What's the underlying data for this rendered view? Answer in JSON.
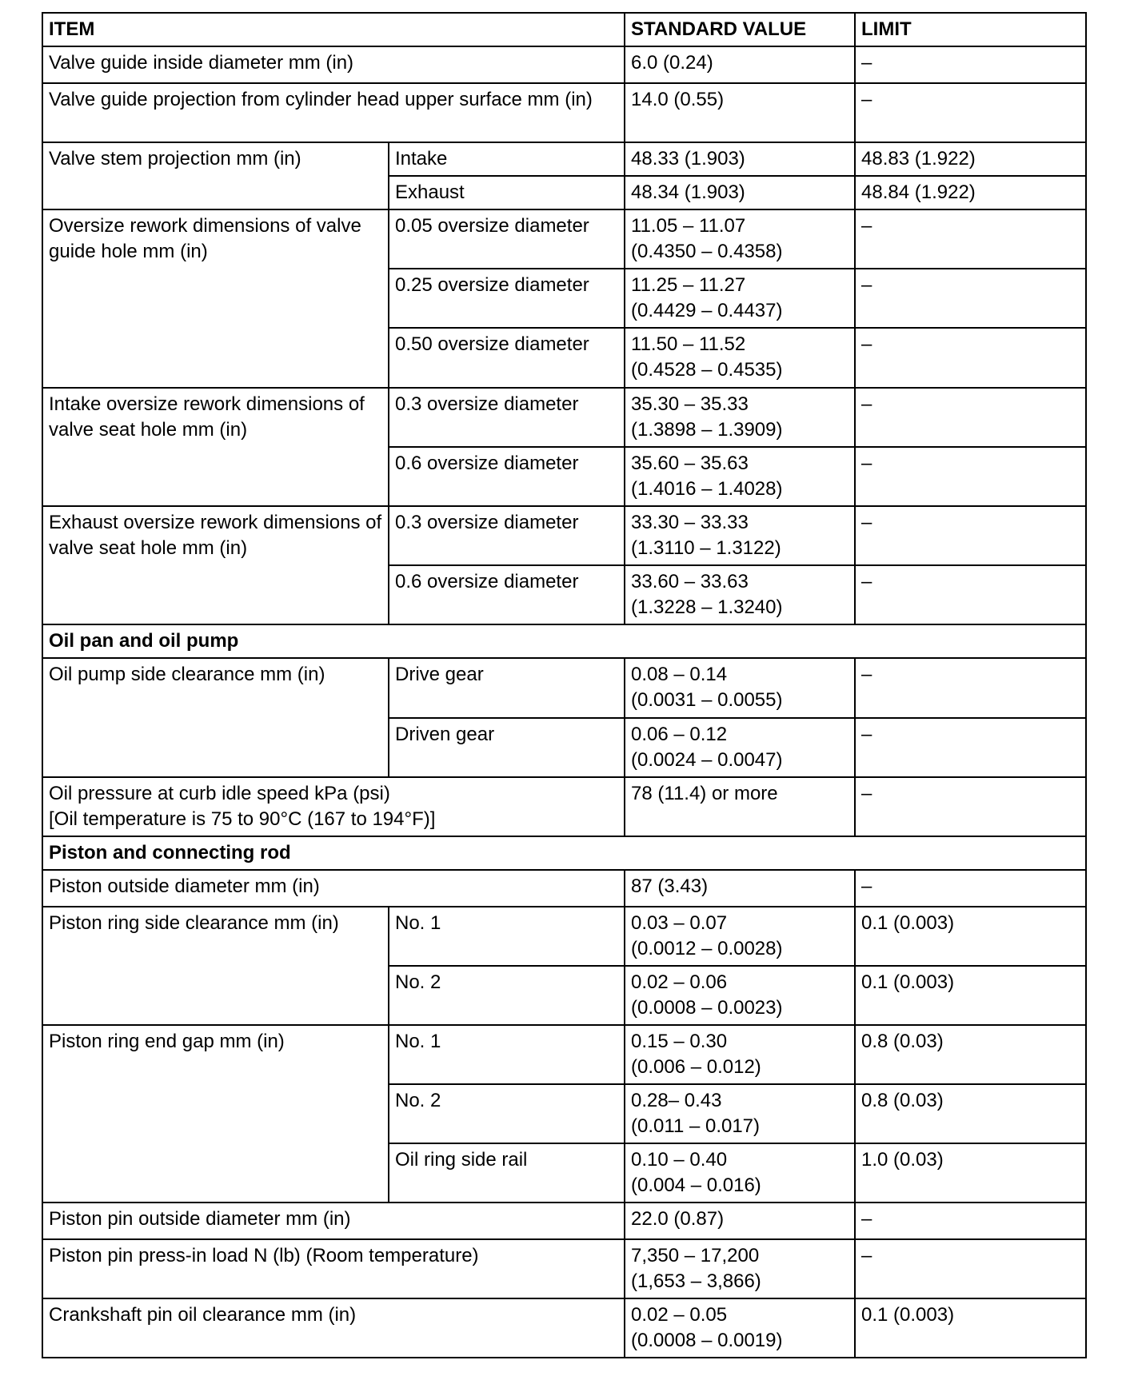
{
  "table": {
    "header": {
      "item": "ITEM",
      "standard_value": "STANDARD VALUE",
      "limit": "LIMIT"
    },
    "rows": [
      {
        "cells": [
          {
            "text": "Valve guide inside diameter mm (in)",
            "colspan": 2
          },
          {
            "text": "6.0 (0.24)"
          },
          {
            "text": "–"
          }
        ]
      },
      {
        "cells": [
          {
            "text": "Valve guide projection from cylinder head upper surface mm (in)",
            "colspan": 2
          },
          {
            "text": "14.0 (0.55)"
          },
          {
            "text": "–"
          }
        ]
      },
      {
        "cells": [
          {
            "text": "Valve stem projection mm (in)",
            "rowspan": 2
          },
          {
            "text": "Intake"
          },
          {
            "text": "48.33 (1.903)"
          },
          {
            "text": "48.83 (1.922)"
          }
        ]
      },
      {
        "cells": [
          {
            "text": "Exhaust"
          },
          {
            "text": "48.34 (1.903)"
          },
          {
            "text": "48.84 (1.922)"
          }
        ]
      },
      {
        "cells": [
          {
            "text": "Oversize rework dimensions of valve guide hole mm (in)",
            "rowspan": 3
          },
          {
            "text": "0.05 oversize diameter"
          },
          {
            "text": "11.05 – 11.07\n(0.4350 – 0.4358)"
          },
          {
            "text": "–"
          }
        ]
      },
      {
        "cells": [
          {
            "text": "0.25 oversize diameter"
          },
          {
            "text": "11.25 – 11.27\n(0.4429 – 0.4437)"
          },
          {
            "text": "–"
          }
        ]
      },
      {
        "cells": [
          {
            "text": "0.50 oversize diameter"
          },
          {
            "text": "11.50 – 11.52\n(0.4528 – 0.4535)"
          },
          {
            "text": "–"
          }
        ]
      },
      {
        "cells": [
          {
            "text": "Intake oversize rework dimensions of valve seat hole mm (in)",
            "rowspan": 2
          },
          {
            "text": "0.3 oversize diameter"
          },
          {
            "text": "35.30 – 35.33\n(1.3898 – 1.3909)"
          },
          {
            "text": "–"
          }
        ]
      },
      {
        "cells": [
          {
            "text": "0.6 oversize diameter"
          },
          {
            "text": "35.60 – 35.63\n(1.4016 – 1.4028)"
          },
          {
            "text": "–"
          }
        ]
      },
      {
        "cells": [
          {
            "text": "Exhaust oversize rework dimensions of valve seat hole mm (in)",
            "rowspan": 2
          },
          {
            "text": "0.3 oversize diameter"
          },
          {
            "text": "33.30 – 33.33\n(1.3110 – 1.3122)"
          },
          {
            "text": "–"
          }
        ]
      },
      {
        "cells": [
          {
            "text": "0.6 oversize diameter"
          },
          {
            "text": "33.60 – 33.63\n(1.3228 – 1.3240)"
          },
          {
            "text": "–"
          }
        ]
      },
      {
        "section": true,
        "cells": [
          {
            "text": "Oil pan and oil pump",
            "colspan": 4
          }
        ]
      },
      {
        "cells": [
          {
            "text": "Oil pump side clearance mm (in)",
            "rowspan": 2
          },
          {
            "text": "Drive gear"
          },
          {
            "text": "0.08 – 0.14\n(0.0031 – 0.0055)"
          },
          {
            "text": "–"
          }
        ]
      },
      {
        "cells": [
          {
            "text": "Driven gear"
          },
          {
            "text": "0.06 – 0.12\n(0.0024 – 0.0047)"
          },
          {
            "text": "–"
          }
        ]
      },
      {
        "cells": [
          {
            "text": "Oil pressure at curb idle speed kPa (psi)\n[Oil temperature is 75 to 90°C (167 to 194°F)]",
            "colspan": 2
          },
          {
            "text": "78 (11.4) or more"
          },
          {
            "text": "–"
          }
        ]
      },
      {
        "section": true,
        "cells": [
          {
            "text": "Piston and connecting rod",
            "colspan": 4
          }
        ]
      },
      {
        "cells": [
          {
            "text": "Piston outside diameter mm (in)",
            "colspan": 2
          },
          {
            "text": "87 (3.43)"
          },
          {
            "text": "–"
          }
        ]
      },
      {
        "cells": [
          {
            "text": "Piston ring side clearance mm (in)",
            "rowspan": 2
          },
          {
            "text": "No. 1"
          },
          {
            "text": "0.03 – 0.07\n(0.0012 – 0.0028)"
          },
          {
            "text": "0.1 (0.003)"
          }
        ]
      },
      {
        "cells": [
          {
            "text": "No. 2"
          },
          {
            "text": "0.02 – 0.06\n(0.0008 – 0.0023)"
          },
          {
            "text": "0.1 (0.003)"
          }
        ]
      },
      {
        "cells": [
          {
            "text": "Piston ring end gap mm (in)",
            "rowspan": 3
          },
          {
            "text": "No. 1"
          },
          {
            "text": "0.15 – 0.30\n(0.006 – 0.012)"
          },
          {
            "text": "0.8 (0.03)"
          }
        ]
      },
      {
        "cells": [
          {
            "text": "No. 2"
          },
          {
            "text": "0.28– 0.43\n(0.011 – 0.017)"
          },
          {
            "text": "0.8 (0.03)"
          }
        ]
      },
      {
        "cells": [
          {
            "text": "Oil ring side rail"
          },
          {
            "text": "0.10 – 0.40\n(0.004 – 0.016)"
          },
          {
            "text": "1.0 (0.03)"
          }
        ]
      },
      {
        "cells": [
          {
            "text": "Piston pin outside diameter mm (in)",
            "colspan": 2
          },
          {
            "text": "22.0 (0.87)"
          },
          {
            "text": "–"
          }
        ]
      },
      {
        "cells": [
          {
            "text": "Piston pin press-in load N (lb) (Room temperature)",
            "colspan": 2
          },
          {
            "text": "7,350 – 17,200\n(1,653 – 3,866)"
          },
          {
            "text": "–"
          }
        ]
      },
      {
        "cells": [
          {
            "text": "Crankshaft pin oil clearance mm (in)",
            "colspan": 2
          },
          {
            "text": "0.02 – 0.05\n(0.0008 – 0.0019)"
          },
          {
            "text": "0.1 (0.003)"
          }
        ]
      }
    ]
  }
}
